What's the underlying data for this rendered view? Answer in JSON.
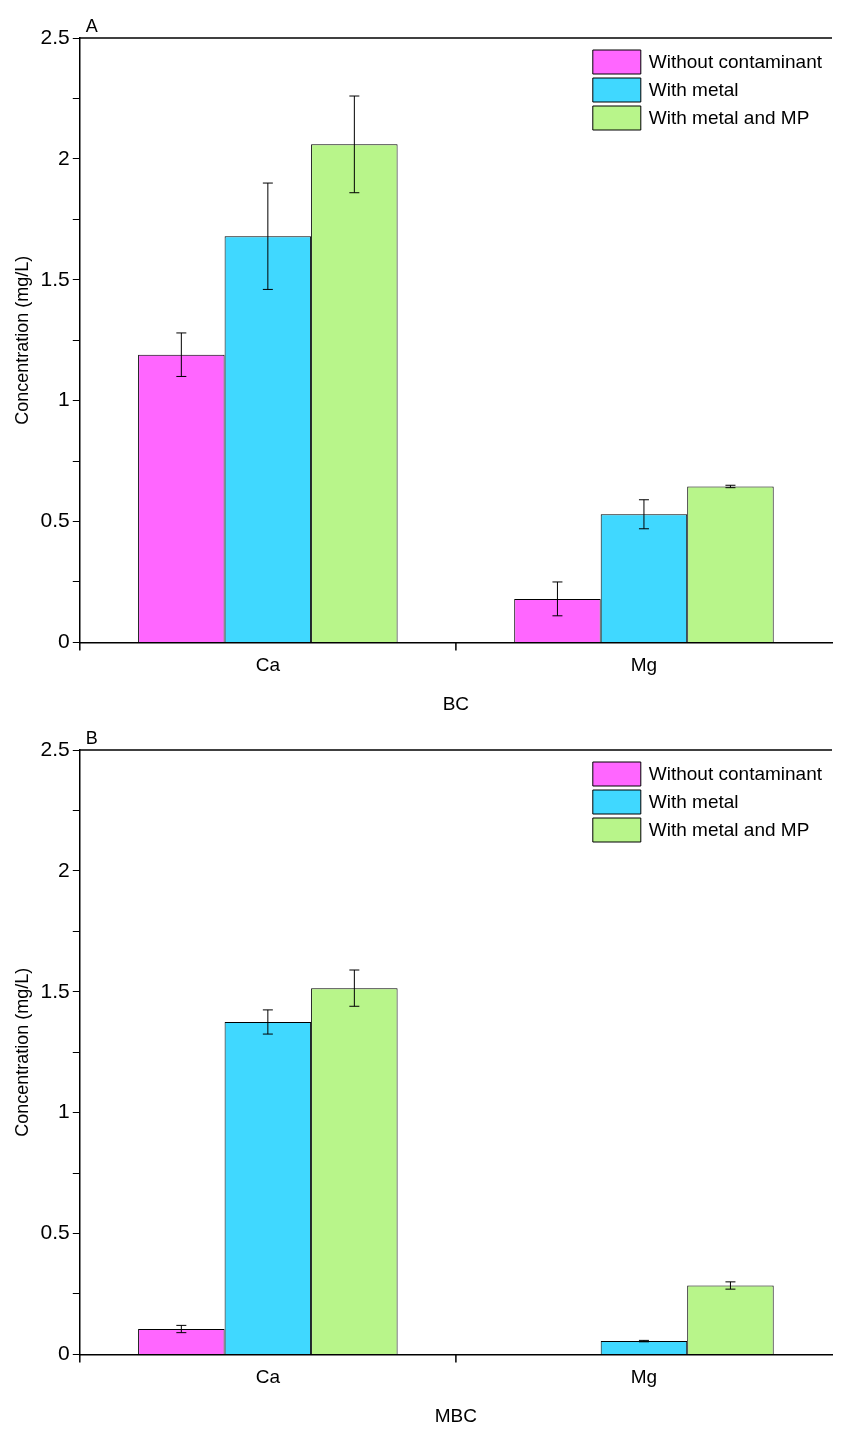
{
  "chart_data": [
    {
      "type": "bar",
      "title": "A",
      "xlabel": "BC",
      "ylabel": "Concentration (mg/L)",
      "categories": [
        "Ca",
        "Mg"
      ],
      "series": [
        {
          "name": "Without contaminant",
          "color": "#ff66ff",
          "values": [
            1.19,
            0.18
          ],
          "errors": [
            0.09,
            0.07
          ]
        },
        {
          "name": "With metal",
          "color": "#40d8ff",
          "values": [
            1.68,
            0.53
          ],
          "errors": [
            0.22,
            0.06
          ]
        },
        {
          "name": "With metal and MP",
          "color": "#b8f58a",
          "values": [
            2.06,
            0.645
          ],
          "errors": [
            0.2,
            0.005
          ]
        }
      ],
      "ylim": [
        0,
        2.5
      ],
      "yticks": [
        0,
        {
          "value": 0.25,
          "label": null
        },
        0.5,
        {
          "value": 0.75,
          "label": null
        },
        1,
        {
          "value": 1.25,
          "label": null
        },
        1.5,
        {
          "value": 1.75,
          "label": null
        },
        2,
        {
          "value": 2.25,
          "label": null
        },
        2.5
      ],
      "grid": false,
      "legend": "top right"
    },
    {
      "type": "bar",
      "title": "B",
      "xlabel": "MBC",
      "ylabel": "Concentration (mg/L)",
      "categories": [
        "Ca",
        "Mg"
      ],
      "series": [
        {
          "name": "Without contaminant",
          "color": "#ff66ff",
          "values": [
            0.105,
            null
          ],
          "errors": [
            0.015,
            null
          ]
        },
        {
          "name": "With metal",
          "color": "#40d8ff",
          "values": [
            1.375,
            0.055
          ],
          "errors": [
            0.05,
            0.003
          ]
        },
        {
          "name": "With metal and MP",
          "color": "#b8f58a",
          "values": [
            1.515,
            0.285
          ],
          "errors": [
            0.075,
            0.015
          ]
        }
      ],
      "ylim": [
        0,
        2.5
      ],
      "yticks": [
        0,
        {
          "value": 0.25,
          "label": null
        },
        0.5,
        {
          "value": 0.75,
          "label": null
        },
        1,
        {
          "value": 1.25,
          "label": null
        },
        1.5,
        {
          "value": 1.75,
          "label": null
        },
        2,
        {
          "value": 2.25,
          "label": null
        },
        2.5
      ],
      "grid": false,
      "legend": "top right"
    }
  ]
}
